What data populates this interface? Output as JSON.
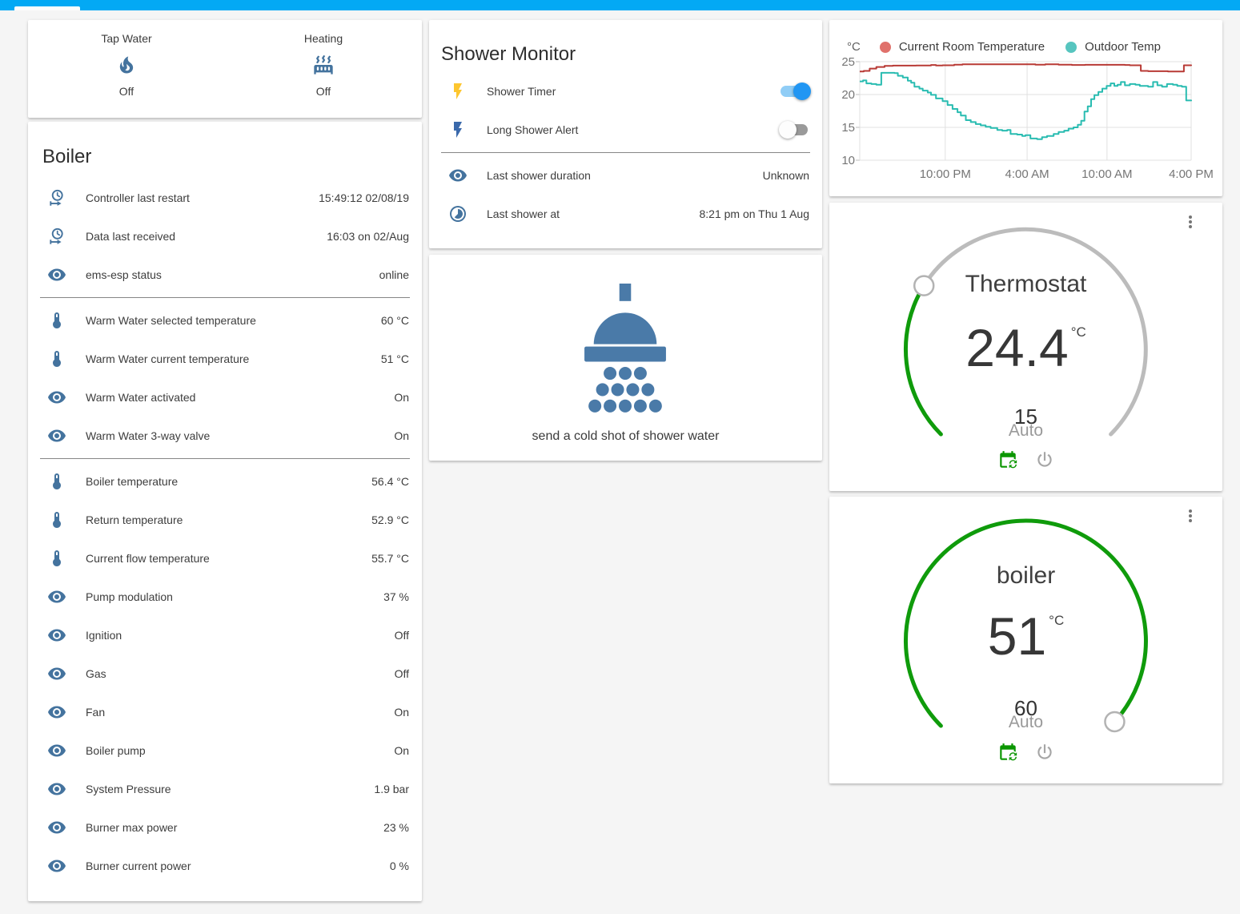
{
  "top_bar": {
    "color": "#03a9f4"
  },
  "colors": {
    "icon_default": "#44739e",
    "toggle_on_track": "#90cdf6",
    "toggle_on_knob": "#2196f3",
    "toggle_off_track": "#9a9a9a",
    "toggle_off_knob": "#fdfdfd",
    "slider_green": "#0f9b0b",
    "calendar_green": "#0a9600",
    "power_gray": "#a6a6a6"
  },
  "glance_card": {
    "items": [
      {
        "label": "Tap Water",
        "icon": "fire-icon",
        "state": "Off"
      },
      {
        "label": "Heating",
        "icon": "radiator-icon",
        "state": "Off"
      }
    ]
  },
  "boiler_card": {
    "title": "Boiler",
    "rows": [
      {
        "icon": "clock-restart-icon",
        "label": "Controller last restart",
        "value": "15:49:12 02/08/19"
      },
      {
        "icon": "clock-restart-icon",
        "label": "Data last received",
        "value": "16:03 on 02/Aug"
      },
      {
        "icon": "eye-icon",
        "label": "ems-esp status",
        "value": "online",
        "divider_after": true
      },
      {
        "icon": "thermometer-icon",
        "label": "Warm Water selected temperature",
        "value": "60 °C"
      },
      {
        "icon": "thermometer-icon",
        "label": "Warm Water current temperature",
        "value": "51 °C"
      },
      {
        "icon": "eye-icon",
        "label": "Warm Water activated",
        "value": "On"
      },
      {
        "icon": "eye-icon",
        "label": "Warm Water 3-way valve",
        "value": "On",
        "divider_after": true
      },
      {
        "icon": "thermometer-icon",
        "label": "Boiler temperature",
        "value": "56.4 °C"
      },
      {
        "icon": "thermometer-icon",
        "label": "Return temperature",
        "value": "52.9 °C"
      },
      {
        "icon": "thermometer-icon",
        "label": "Current flow temperature",
        "value": "55.7 °C"
      },
      {
        "icon": "eye-icon",
        "label": "Pump modulation",
        "value": "37 %"
      },
      {
        "icon": "eye-icon",
        "label": "Ignition",
        "value": "Off"
      },
      {
        "icon": "eye-icon",
        "label": "Gas",
        "value": "Off"
      },
      {
        "icon": "eye-icon",
        "label": "Fan",
        "value": "On"
      },
      {
        "icon": "eye-icon",
        "label": "Boiler pump",
        "value": "On"
      },
      {
        "icon": "eye-icon",
        "label": "System Pressure",
        "value": "1.9 bar"
      },
      {
        "icon": "eye-icon",
        "label": "Burner max power",
        "value": "23 %"
      },
      {
        "icon": "eye-icon",
        "label": "Burner current power",
        "value": "0 %"
      }
    ]
  },
  "shower_monitor_card": {
    "title": "Shower Monitor",
    "rows": [
      {
        "icon": "flash-icon",
        "icon_color": "#fdc62f",
        "label": "Shower Timer",
        "toggle": true
      },
      {
        "icon": "flash-icon",
        "icon_color": "#3a69ab",
        "label": "Long Shower Alert",
        "toggle": false,
        "divider_after": true
      },
      {
        "icon": "eye-icon",
        "label": "Last shower duration",
        "value": "Unknown"
      },
      {
        "icon": "timelapse-icon",
        "label": "Last shower at",
        "value": "8:21 pm on Thu 1 Aug"
      }
    ]
  },
  "shower_action_card": {
    "icon": "shower-head-icon",
    "label": "send a cold shot of shower water"
  },
  "chart_data": {
    "type": "line",
    "title": "",
    "unit": "°C",
    "grid": true,
    "legend_position": "top",
    "ylim": [
      10,
      25
    ],
    "y_ticks": [
      25,
      20,
      15,
      10
    ],
    "x_ticks": [
      {
        "label": "10:00 PM",
        "f": 0.258
      },
      {
        "label": "4:00 AM",
        "f": 0.505
      },
      {
        "label": "10:00 AM",
        "f": 0.746
      },
      {
        "label": "4:00 PM",
        "f": 1.0
      }
    ],
    "series": [
      {
        "name": "Current Room Temperature",
        "color": "#b83a35",
        "dot_color": "#e0716b",
        "points": [
          [
            0,
            23.5
          ],
          [
            0.012,
            23.6
          ],
          [
            0.03,
            23.95
          ],
          [
            0.05,
            24.2
          ],
          [
            0.075,
            24.35
          ],
          [
            0.1,
            24.4
          ],
          [
            0.17,
            24.42
          ],
          [
            0.215,
            24.5
          ],
          [
            0.23,
            24.42
          ],
          [
            0.25,
            24.45
          ],
          [
            0.285,
            24.55
          ],
          [
            0.31,
            24.6
          ],
          [
            0.52,
            24.6
          ],
          [
            0.53,
            24.55
          ],
          [
            0.56,
            24.6
          ],
          [
            0.6,
            24.55
          ],
          [
            0.64,
            24.5
          ],
          [
            0.68,
            24.52
          ],
          [
            0.8,
            24.5
          ],
          [
            0.815,
            24.45
          ],
          [
            0.843,
            24.45
          ],
          [
            0.848,
            23.6
          ],
          [
            0.87,
            23.55
          ],
          [
            0.93,
            23.5
          ],
          [
            0.972,
            23.5
          ],
          [
            0.978,
            24.45
          ],
          [
            1,
            24.35
          ]
        ]
      },
      {
        "name": "Outdoor Temp",
        "color": "#29bcb1",
        "dot_color": "#57c5bf",
        "points": [
          [
            0,
            22.0
          ],
          [
            0.01,
            22.15
          ],
          [
            0.02,
            21.7
          ],
          [
            0.035,
            21.6
          ],
          [
            0.05,
            21.5
          ],
          [
            0.065,
            23.3
          ],
          [
            0.105,
            23.25
          ],
          [
            0.115,
            22.85
          ],
          [
            0.13,
            22.6
          ],
          [
            0.145,
            22.1
          ],
          [
            0.155,
            21.8
          ],
          [
            0.165,
            21.2
          ],
          [
            0.18,
            20.9
          ],
          [
            0.19,
            20.6
          ],
          [
            0.205,
            20.3
          ],
          [
            0.215,
            19.95
          ],
          [
            0.23,
            19.4
          ],
          [
            0.25,
            19.0
          ],
          [
            0.265,
            18.4
          ],
          [
            0.28,
            17.8
          ],
          [
            0.295,
            17.3
          ],
          [
            0.305,
            16.8
          ],
          [
            0.32,
            16.1
          ],
          [
            0.335,
            15.8
          ],
          [
            0.35,
            15.5
          ],
          [
            0.365,
            15.3
          ],
          [
            0.38,
            15.1
          ],
          [
            0.395,
            14.9
          ],
          [
            0.415,
            14.6
          ],
          [
            0.43,
            14.5
          ],
          [
            0.445,
            14.6
          ],
          [
            0.455,
            14.0
          ],
          [
            0.475,
            13.9
          ],
          [
            0.49,
            13.7
          ],
          [
            0.5,
            13.8
          ],
          [
            0.515,
            13.3
          ],
          [
            0.535,
            13.2
          ],
          [
            0.55,
            13.5
          ],
          [
            0.565,
            13.7
          ],
          [
            0.585,
            14.0
          ],
          [
            0.6,
            14.3
          ],
          [
            0.617,
            14.5
          ],
          [
            0.63,
            14.8
          ],
          [
            0.645,
            15.0
          ],
          [
            0.658,
            15.4
          ],
          [
            0.668,
            16.0
          ],
          [
            0.678,
            17.4
          ],
          [
            0.688,
            18.2
          ],
          [
            0.698,
            19.3
          ],
          [
            0.708,
            19.9
          ],
          [
            0.72,
            20.4
          ],
          [
            0.732,
            20.9
          ],
          [
            0.745,
            21.3
          ],
          [
            0.757,
            21.7
          ],
          [
            0.768,
            21.3
          ],
          [
            0.778,
            21.5
          ],
          [
            0.788,
            21.9
          ],
          [
            0.8,
            21.4
          ],
          [
            0.815,
            21.6
          ],
          [
            0.832,
            21.5
          ],
          [
            0.845,
            21.3
          ],
          [
            0.87,
            21.2
          ],
          [
            0.885,
            21.9
          ],
          [
            0.898,
            21.4
          ],
          [
            0.912,
            21.2
          ],
          [
            0.927,
            21.6
          ],
          [
            0.945,
            21.5
          ],
          [
            0.958,
            21.3
          ],
          [
            0.972,
            21.2
          ],
          [
            0.985,
            19.1
          ],
          [
            1,
            19.0
          ]
        ]
      }
    ]
  },
  "thermostat_card": {
    "title": "Thermostat",
    "value": "24.4",
    "unit": "°C",
    "target": "15",
    "mode": "Auto",
    "slider": {
      "fraction": 0.285,
      "color": "#0f9b0b"
    }
  },
  "boiler_gauge_card": {
    "title": "boiler",
    "value": "51",
    "unit": "°C",
    "target": "60",
    "mode": "Auto",
    "slider": {
      "fraction": 0.99,
      "color": "#0f9b0b"
    }
  }
}
